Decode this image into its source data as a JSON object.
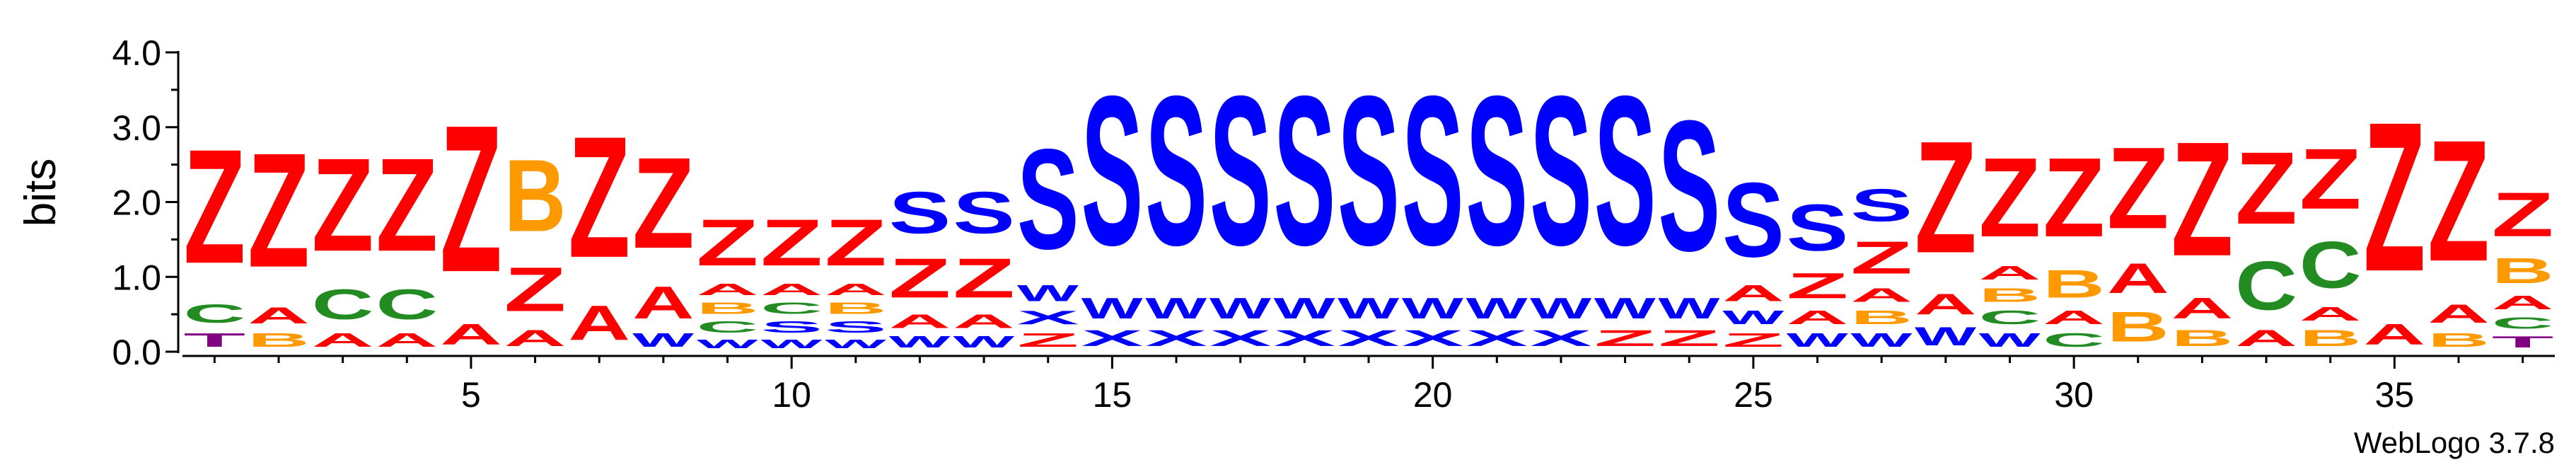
{
  "chart_data": {
    "type": "sequence-logo",
    "ylabel": "bits",
    "ylim": [
      0,
      4.0
    ],
    "y_ticks": [
      "0.0",
      "1.0",
      "2.0",
      "3.0",
      "4.0"
    ],
    "x_ticks": [
      5,
      10,
      15,
      20,
      25,
      30,
      35
    ],
    "credit": "WebLogo 3.7.8",
    "colors": {
      "Z": "#ff0000",
      "A": "#ff0000",
      "S": "#0000ff",
      "W": "#0000ff",
      "X": "#0000ff",
      "B": "#ff9900",
      "C": "#228b22",
      "T": "#800080"
    },
    "positions": [
      {
        "pos": 1,
        "stack": [
          [
            "T",
            0.3
          ],
          [
            "C",
            0.4
          ],
          [
            "Z",
            2.45
          ]
        ]
      },
      {
        "pos": 2,
        "stack": [
          [
            "B",
            0.3
          ],
          [
            "A",
            0.35
          ],
          [
            "Z",
            2.45
          ]
        ]
      },
      {
        "pos": 3,
        "stack": [
          [
            "A",
            0.3
          ],
          [
            "C",
            0.65
          ],
          [
            "Z",
            2.0
          ]
        ]
      },
      {
        "pos": 4,
        "stack": [
          [
            "A",
            0.3
          ],
          [
            "C",
            0.65
          ],
          [
            "Z",
            2.0
          ]
        ]
      },
      {
        "pos": 5,
        "stack": [
          [
            "A",
            0.45
          ],
          [
            "Z",
            3.15
          ]
        ]
      },
      {
        "pos": 6,
        "stack": [
          [
            "A",
            0.35
          ],
          [
            "Z",
            0.95
          ],
          [
            "B",
            1.55
          ]
        ]
      },
      {
        "pos": 7,
        "stack": [
          [
            "A",
            0.75
          ],
          [
            "Z",
            2.6
          ]
        ]
      },
      {
        "pos": 8,
        "stack": [
          [
            "W",
            0.3
          ],
          [
            "A",
            0.7
          ],
          [
            "Z",
            1.95
          ]
        ]
      },
      {
        "pos": 9,
        "stack": [
          [
            "W",
            0.2
          ],
          [
            "C",
            0.25
          ],
          [
            "B",
            0.25
          ],
          [
            "A",
            0.25
          ],
          [
            "Z",
            1.0
          ]
        ]
      },
      {
        "pos": 10,
        "stack": [
          [
            "W",
            0.2
          ],
          [
            "S",
            0.25
          ],
          [
            "C",
            0.25
          ],
          [
            "A",
            0.25
          ],
          [
            "Z",
            1.0
          ]
        ]
      },
      {
        "pos": 11,
        "stack": [
          [
            "W",
            0.2
          ],
          [
            "S",
            0.25
          ],
          [
            "B",
            0.25
          ],
          [
            "A",
            0.25
          ],
          [
            "Z",
            1.0
          ]
        ]
      },
      {
        "pos": 12,
        "stack": [
          [
            "W",
            0.25
          ],
          [
            "A",
            0.3
          ],
          [
            "Z",
            0.85
          ],
          [
            "S",
            0.9
          ]
        ]
      },
      {
        "pos": 13,
        "stack": [
          [
            "W",
            0.25
          ],
          [
            "A",
            0.3
          ],
          [
            "Z",
            0.85
          ],
          [
            "S",
            0.9
          ]
        ]
      },
      {
        "pos": 14,
        "stack": [
          [
            "Z",
            0.3
          ],
          [
            "X",
            0.3
          ],
          [
            "W",
            0.35
          ],
          [
            "S",
            2.15
          ]
        ]
      },
      {
        "pos": 15,
        "stack": [
          [
            "X",
            0.35
          ],
          [
            "W",
            0.45
          ],
          [
            "S",
            3.2
          ]
        ]
      },
      {
        "pos": 16,
        "stack": [
          [
            "X",
            0.35
          ],
          [
            "W",
            0.45
          ],
          [
            "S",
            3.2
          ]
        ]
      },
      {
        "pos": 17,
        "stack": [
          [
            "X",
            0.35
          ],
          [
            "W",
            0.45
          ],
          [
            "S",
            3.2
          ]
        ]
      },
      {
        "pos": 18,
        "stack": [
          [
            "X",
            0.35
          ],
          [
            "W",
            0.45
          ],
          [
            "S",
            3.2
          ]
        ]
      },
      {
        "pos": 19,
        "stack": [
          [
            "X",
            0.35
          ],
          [
            "W",
            0.45
          ],
          [
            "S",
            3.2
          ]
        ]
      },
      {
        "pos": 20,
        "stack": [
          [
            "X",
            0.35
          ],
          [
            "W",
            0.45
          ],
          [
            "S",
            3.2
          ]
        ]
      },
      {
        "pos": 21,
        "stack": [
          [
            "X",
            0.35
          ],
          [
            "W",
            0.45
          ],
          [
            "S",
            3.2
          ]
        ]
      },
      {
        "pos": 22,
        "stack": [
          [
            "X",
            0.35
          ],
          [
            "W",
            0.45
          ],
          [
            "S",
            3.2
          ]
        ]
      },
      {
        "pos": 23,
        "stack": [
          [
            "Z",
            0.35
          ],
          [
            "W",
            0.45
          ],
          [
            "S",
            3.2
          ]
        ]
      },
      {
        "pos": 24,
        "stack": [
          [
            "Z",
            0.35
          ],
          [
            "W",
            0.45
          ],
          [
            "S",
            2.8
          ]
        ]
      },
      {
        "pos": 25,
        "stack": [
          [
            "Z",
            0.3
          ],
          [
            "W",
            0.3
          ],
          [
            "A",
            0.35
          ],
          [
            "S",
            1.6
          ]
        ]
      },
      {
        "pos": 26,
        "stack": [
          [
            "W",
            0.3
          ],
          [
            "A",
            0.3
          ],
          [
            "Z",
            0.55
          ],
          [
            "S",
            1.0
          ]
        ]
      },
      {
        "pos": 27,
        "stack": [
          [
            "W",
            0.3
          ],
          [
            "B",
            0.3
          ],
          [
            "A",
            0.3
          ],
          [
            "Z",
            0.7
          ],
          [
            "S",
            0.7
          ]
        ]
      },
      {
        "pos": 28,
        "stack": [
          [
            "W",
            0.4
          ],
          [
            "A",
            0.45
          ],
          [
            "Z",
            2.4
          ]
        ]
      },
      {
        "pos": 29,
        "stack": [
          [
            "W",
            0.3
          ],
          [
            "C",
            0.3
          ],
          [
            "B",
            0.3
          ],
          [
            "A",
            0.3
          ],
          [
            "Z",
            1.7
          ]
        ]
      },
      {
        "pos": 30,
        "stack": [
          [
            "C",
            0.3
          ],
          [
            "A",
            0.3
          ],
          [
            "B",
            0.6
          ],
          [
            "Z",
            1.7
          ]
        ]
      },
      {
        "pos": 31,
        "stack": [
          [
            "B",
            0.65
          ],
          [
            "A",
            0.65
          ],
          [
            "Z",
            1.75
          ]
        ]
      },
      {
        "pos": 32,
        "stack": [
          [
            "B",
            0.35
          ],
          [
            "A",
            0.45
          ],
          [
            "Z",
            2.45
          ]
        ]
      },
      {
        "pos": 33,
        "stack": [
          [
            "A",
            0.35
          ],
          [
            "C",
            1.05
          ],
          [
            "Z",
            1.55
          ]
        ]
      },
      {
        "pos": 34,
        "stack": [
          [
            "B",
            0.35
          ],
          [
            "A",
            0.3
          ],
          [
            "C",
            1.0
          ],
          [
            "Z",
            1.3
          ]
        ]
      },
      {
        "pos": 35,
        "stack": [
          [
            "A",
            0.45
          ],
          [
            "Z",
            3.2
          ]
        ]
      },
      {
        "pos": 36,
        "stack": [
          [
            "B",
            0.3
          ],
          [
            "A",
            0.4
          ],
          [
            "Z",
            2.6
          ]
        ]
      },
      {
        "pos": 37,
        "stack": [
          [
            "T",
            0.25
          ],
          [
            "C",
            0.25
          ],
          [
            "A",
            0.3
          ],
          [
            "B",
            0.55
          ],
          [
            "Z",
            0.95
          ]
        ]
      }
    ]
  }
}
